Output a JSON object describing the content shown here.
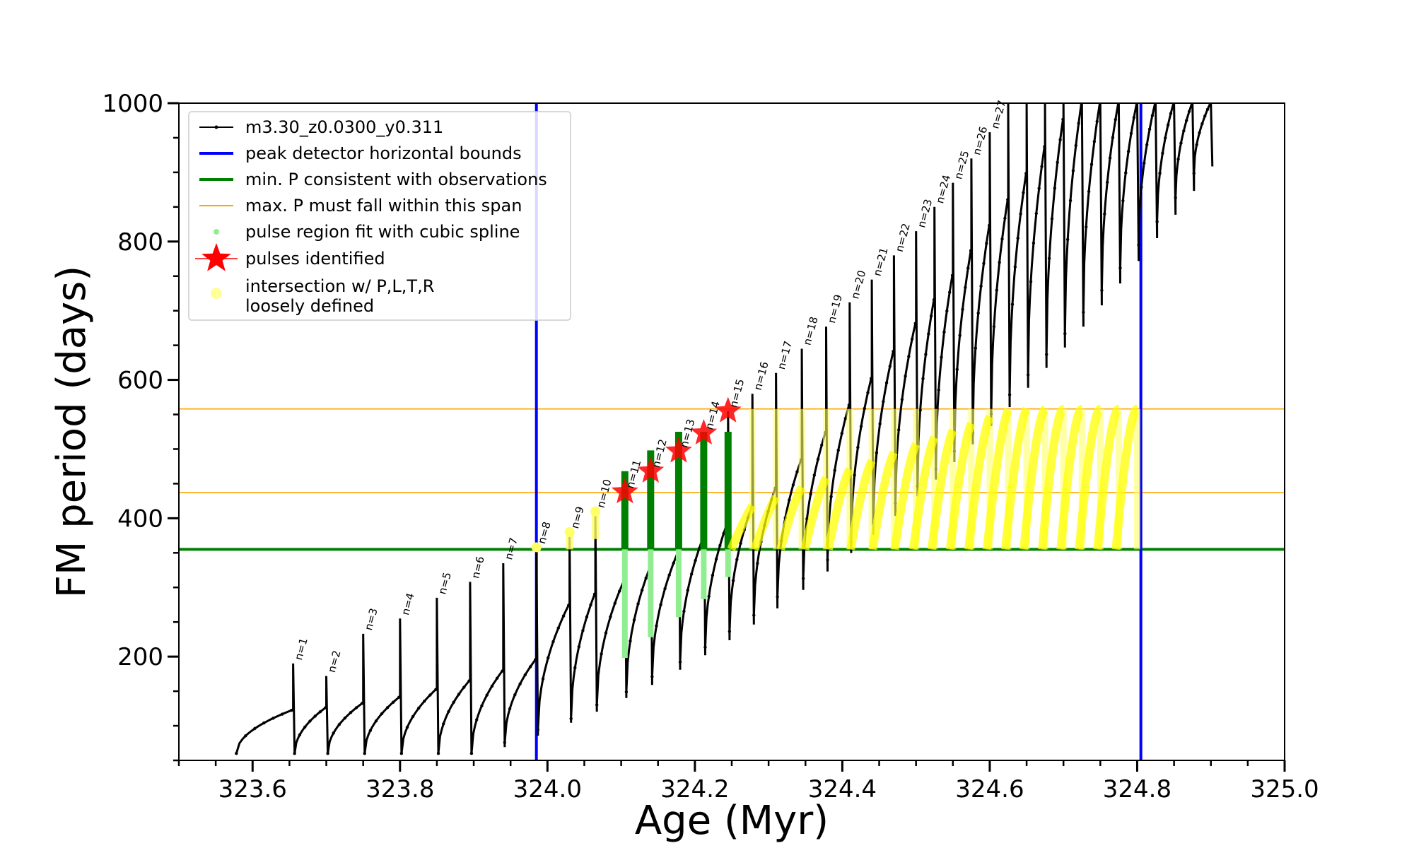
{
  "chart_data": {
    "type": "line",
    "xlabel": "Age (Myr)",
    "ylabel": "FM period (days)",
    "xlim": [
      323.5,
      325.0
    ],
    "ylim": [
      50,
      1000
    ],
    "xticks": [
      323.6,
      323.8,
      324.0,
      324.2,
      324.4,
      324.6,
      324.8,
      325.0
    ],
    "xtick_labels": [
      "323.6",
      "323.8",
      "324.0",
      "324.2",
      "324.4",
      "324.6",
      "324.8",
      "325.0"
    ],
    "yticks": [
      200,
      400,
      600,
      800,
      1000
    ],
    "ytick_labels": [
      "200",
      "400",
      "600",
      "800",
      "1000"
    ],
    "legend_position": "top-left",
    "legend": [
      {
        "label": "m3.30_z0.0300_y0.311",
        "kind": "line-dot",
        "color": "#000000"
      },
      {
        "label": "peak detector horizontal bounds",
        "kind": "line",
        "color": "#0000ff"
      },
      {
        "label": "min. P consistent with observations",
        "kind": "line",
        "color": "#008000"
      },
      {
        "label": "max. P must fall within this span",
        "kind": "thin-line",
        "color": "#ffa500"
      },
      {
        "label": "pulse region fit with cubic spline",
        "kind": "point",
        "color": "#90ee90"
      },
      {
        "label": "pulses identified",
        "kind": "star",
        "color": "#ff0000"
      },
      {
        "label": "intersection w/ P,L,T,R",
        "label2": "loosely defined",
        "kind": "circle",
        "color": "#ffff99"
      }
    ],
    "vertical_bounds": [
      323.985,
      324.805
    ],
    "min_period": 355,
    "max_period_span": [
      437,
      558
    ],
    "pulse_peaks": [
      {
        "n": "n=1",
        "age": 323.655,
        "peak": 190
      },
      {
        "n": "n=2",
        "age": 323.7,
        "peak": 172
      },
      {
        "n": "n=3",
        "age": 323.75,
        "peak": 233
      },
      {
        "n": "n=4",
        "age": 323.8,
        "peak": 255
      },
      {
        "n": "n=5",
        "age": 323.85,
        "peak": 285
      },
      {
        "n": "n=6",
        "age": 323.895,
        "peak": 308
      },
      {
        "n": "n=7",
        "age": 323.94,
        "peak": 335
      },
      {
        "n": "n=8",
        "age": 323.985,
        "peak": 358
      },
      {
        "n": "n=9",
        "age": 324.03,
        "peak": 380
      },
      {
        "n": "n=10",
        "age": 324.065,
        "peak": 410
      },
      {
        "n": "n=11",
        "age": 324.105,
        "peak": 438
      },
      {
        "n": "n=12",
        "age": 324.14,
        "peak": 468
      },
      {
        "n": "n=13",
        "age": 324.178,
        "peak": 497
      },
      {
        "n": "n=14",
        "age": 324.212,
        "peak": 523
      },
      {
        "n": "n=15",
        "age": 324.245,
        "peak": 555
      },
      {
        "n": "n=16",
        "age": 324.278,
        "peak": 580
      },
      {
        "n": "n=17",
        "age": 324.31,
        "peak": 610
      },
      {
        "n": "n=18",
        "age": 324.345,
        "peak": 645
      },
      {
        "n": "n=19",
        "age": 324.378,
        "peak": 677
      },
      {
        "n": "n=20",
        "age": 324.41,
        "peak": 712
      },
      {
        "n": "n=21",
        "age": 324.44,
        "peak": 745
      },
      {
        "n": "n=22",
        "age": 324.47,
        "peak": 780
      },
      {
        "n": "n=23",
        "age": 324.5,
        "peak": 815
      },
      {
        "n": "n=24",
        "age": 324.525,
        "peak": 850
      },
      {
        "n": "n=25",
        "age": 324.55,
        "peak": 885
      },
      {
        "n": "n=26",
        "age": 324.575,
        "peak": 920
      },
      {
        "n": "n=27",
        "age": 324.6,
        "peak": 958
      }
    ],
    "extra_pulse_ages": [
      324.625,
      324.65,
      324.675,
      324.7,
      324.725,
      324.75,
      324.775,
      324.8,
      324.825,
      324.85,
      324.875,
      324.9
    ],
    "identified_pulses": [
      {
        "age": 324.105,
        "period": 438
      },
      {
        "age": 324.14,
        "period": 468
      },
      {
        "age": 324.178,
        "period": 497
      },
      {
        "age": 324.212,
        "period": 523
      },
      {
        "age": 324.245,
        "period": 555
      }
    ]
  }
}
